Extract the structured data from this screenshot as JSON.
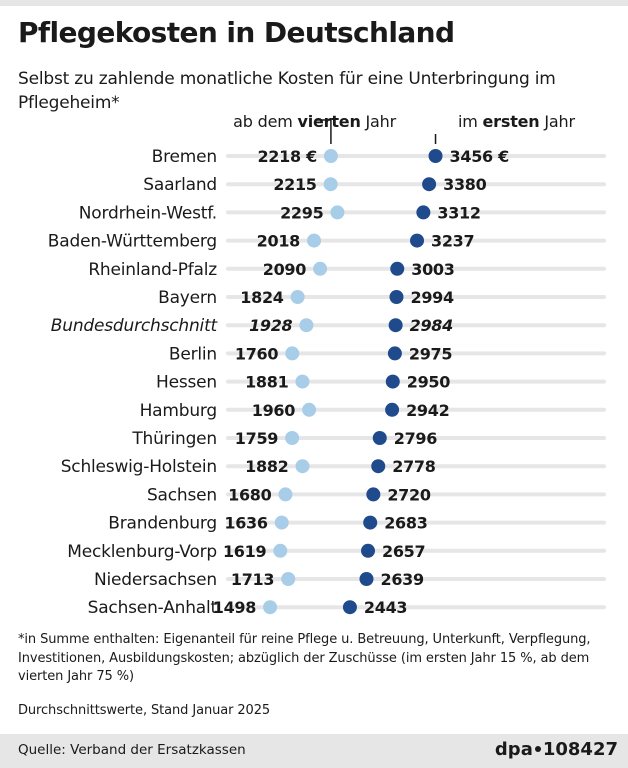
{
  "title": "Pflegekosten in Deutschland",
  "subtitle": "Selbst zu zahlende monatliche Kosten für eine Unterbringung im Pflegeheim*",
  "legend": {
    "fourth_year_prefix": "ab dem ",
    "fourth_year_bold": "vierten",
    "fourth_year_suffix": " Jahr",
    "first_year_prefix": "im ",
    "first_year_bold": "ersten",
    "first_year_suffix": " Jahr"
  },
  "chart_data": {
    "type": "scatter",
    "title": "Pflegekosten in Deutschland",
    "subtitle": "Selbst zu zahlende monatliche Kosten für eine Unterbringung im Pflegeheim*",
    "unit": "€",
    "highlight_category": "Bundesdurchschnitt",
    "categories": [
      "Bremen",
      "Saarland",
      "Nordrhein-Westf.",
      "Baden-Württemberg",
      "Rheinland-Pfalz",
      "Bayern",
      "Bundesdurchschnitt",
      "Berlin",
      "Hessen",
      "Hamburg",
      "Thüringen",
      "Schleswig-Holstein",
      "Sachsen",
      "Brandenburg",
      "Mecklenburg-Vorp",
      "Niedersachsen",
      "Sachsen-Anhalt"
    ],
    "series": [
      {
        "name": "ab dem vierten Jahr",
        "color": "#a8cde8",
        "values": [
          2218,
          2215,
          2295,
          2018,
          2090,
          1824,
          1928,
          1760,
          1881,
          1960,
          1759,
          1882,
          1680,
          1636,
          1619,
          1713,
          1498
        ],
        "labels": [
          "2218 €",
          "2215",
          "2295",
          "2018",
          "2090",
          "1824",
          "1928",
          "1760",
          "1881",
          "1960",
          "1759",
          "1882",
          "1680",
          "1636",
          "1619",
          "1713",
          "1498"
        ]
      },
      {
        "name": "im ersten Jahr",
        "color": "#1f4a8c",
        "values": [
          3456,
          3380,
          3312,
          3237,
          3003,
          2994,
          2984,
          2975,
          2950,
          2942,
          2796,
          2778,
          2720,
          2683,
          2657,
          2639,
          2443
        ],
        "labels": [
          "3456 €",
          "3380",
          "3312",
          "3237",
          "3003",
          "2994",
          "2984",
          "2975",
          "2950",
          "2942",
          "2796",
          "2778",
          "2720",
          "2683",
          "2657",
          "2639",
          "2443"
        ]
      }
    ],
    "grid": false,
    "legend_position": "top"
  },
  "footnote": "*in Summe enthalten: Eigenanteil für reine Pflege u. Betreuung, Unterkunft, Verpflegung, Investitionen, Ausbildungskosten; abzüglich der Zuschüsse (im ersten Jahr 15 %, ab dem vierten Jahr 75 %)",
  "stand": "Durchschnittswerte, Stand Januar 2025",
  "source": "Quelle: Verband der Ersatzkassen",
  "brand": {
    "name": "dpa",
    "id": "108427"
  },
  "colors": {
    "track": "#e6e6e6",
    "light_dot": "#a8cde8",
    "dark_dot": "#1f4a8c"
  }
}
